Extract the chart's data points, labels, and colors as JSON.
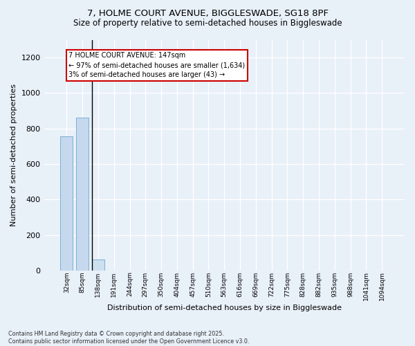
{
  "title_line1": "7, HOLME COURT AVENUE, BIGGLESWADE, SG18 8PF",
  "title_line2": "Size of property relative to semi-detached houses in Biggleswade",
  "xlabel": "Distribution of semi-detached houses by size in Biggleswade",
  "ylabel": "Number of semi-detached properties",
  "categories": [
    "32sqm",
    "85sqm",
    "138sqm",
    "191sqm",
    "244sqm",
    "297sqm",
    "350sqm",
    "404sqm",
    "457sqm",
    "510sqm",
    "563sqm",
    "616sqm",
    "669sqm",
    "722sqm",
    "775sqm",
    "828sqm",
    "882sqm",
    "935sqm",
    "988sqm",
    "1041sqm",
    "1094sqm"
  ],
  "values": [
    755,
    860,
    62,
    0,
    0,
    0,
    0,
    0,
    0,
    0,
    0,
    0,
    0,
    0,
    0,
    0,
    0,
    0,
    0,
    0,
    0
  ],
  "bar_color_normal": "#c5d8ed",
  "bar_color_highlight": "#cce0f0",
  "bar_edge_color": "#7bafd4",
  "highlight_bar_index": 2,
  "property_line": "7 HOLME COURT AVENUE: 147sqm",
  "annotation_line1": "← 97% of semi-detached houses are smaller (1,634)",
  "annotation_line2": "3% of semi-detached houses are larger (43) →",
  "annotation_box_color": "#ffffff",
  "annotation_box_edge": "#cc0000",
  "vline_x": 1.6,
  "ylim": [
    0,
    1300
  ],
  "yticks": [
    0,
    200,
    400,
    600,
    800,
    1000,
    1200
  ],
  "background_color": "#e8f0f8",
  "grid_color": "#ffffff",
  "footer_line1": "Contains HM Land Registry data © Crown copyright and database right 2025.",
  "footer_line2": "Contains public sector information licensed under the Open Government Licence v3.0."
}
